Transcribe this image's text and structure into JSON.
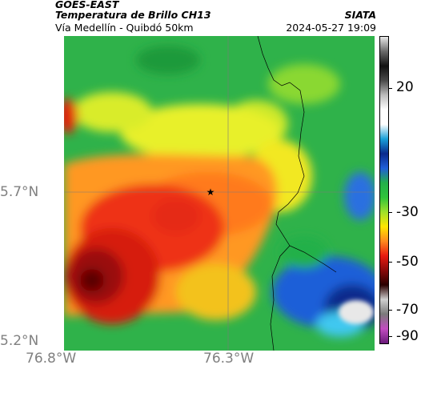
{
  "header": {
    "satellite": "GOES-EAST",
    "product": "Temperatura de Brillo CH13",
    "region": "Vía Medellín - Quibdó 50km",
    "institution": "SIATA",
    "datetime": "2024-05-27 19:09"
  },
  "axes": {
    "lat_labels": [
      "5.7°N",
      "5.2°N"
    ],
    "lon_labels": [
      "76.8°W",
      "76.3°W"
    ]
  },
  "colorbar": {
    "labels": [
      "20",
      "-30",
      "-50",
      "-70",
      "-90"
    ],
    "stops": [
      "#e8e8e8",
      "#6a6a6a",
      "#111111",
      "#4a4a4a",
      "#bdbdbd",
      "#ffffff",
      "#ffffff",
      "#1aa0d8",
      "#0a2a8c",
      "#1f5fd8",
      "#22b04a",
      "#2fc43a",
      "#9ee02a",
      "#ffe600",
      "#ff8a1e",
      "#e81a10",
      "#8a0a0a",
      "#2a0000",
      "#cfcfcf",
      "#7a7a7a",
      "#c24cc0",
      "#6a1a7a"
    ]
  },
  "marker": {
    "icon": "star-icon"
  },
  "colors": {
    "green": "#2fb24a",
    "yellow": "#e8f02a",
    "orange": "#ff8a1e",
    "red": "#e02010",
    "darkred": "#7a0a0a",
    "blue": "#1848c8",
    "cyan": "#40c8f0"
  }
}
